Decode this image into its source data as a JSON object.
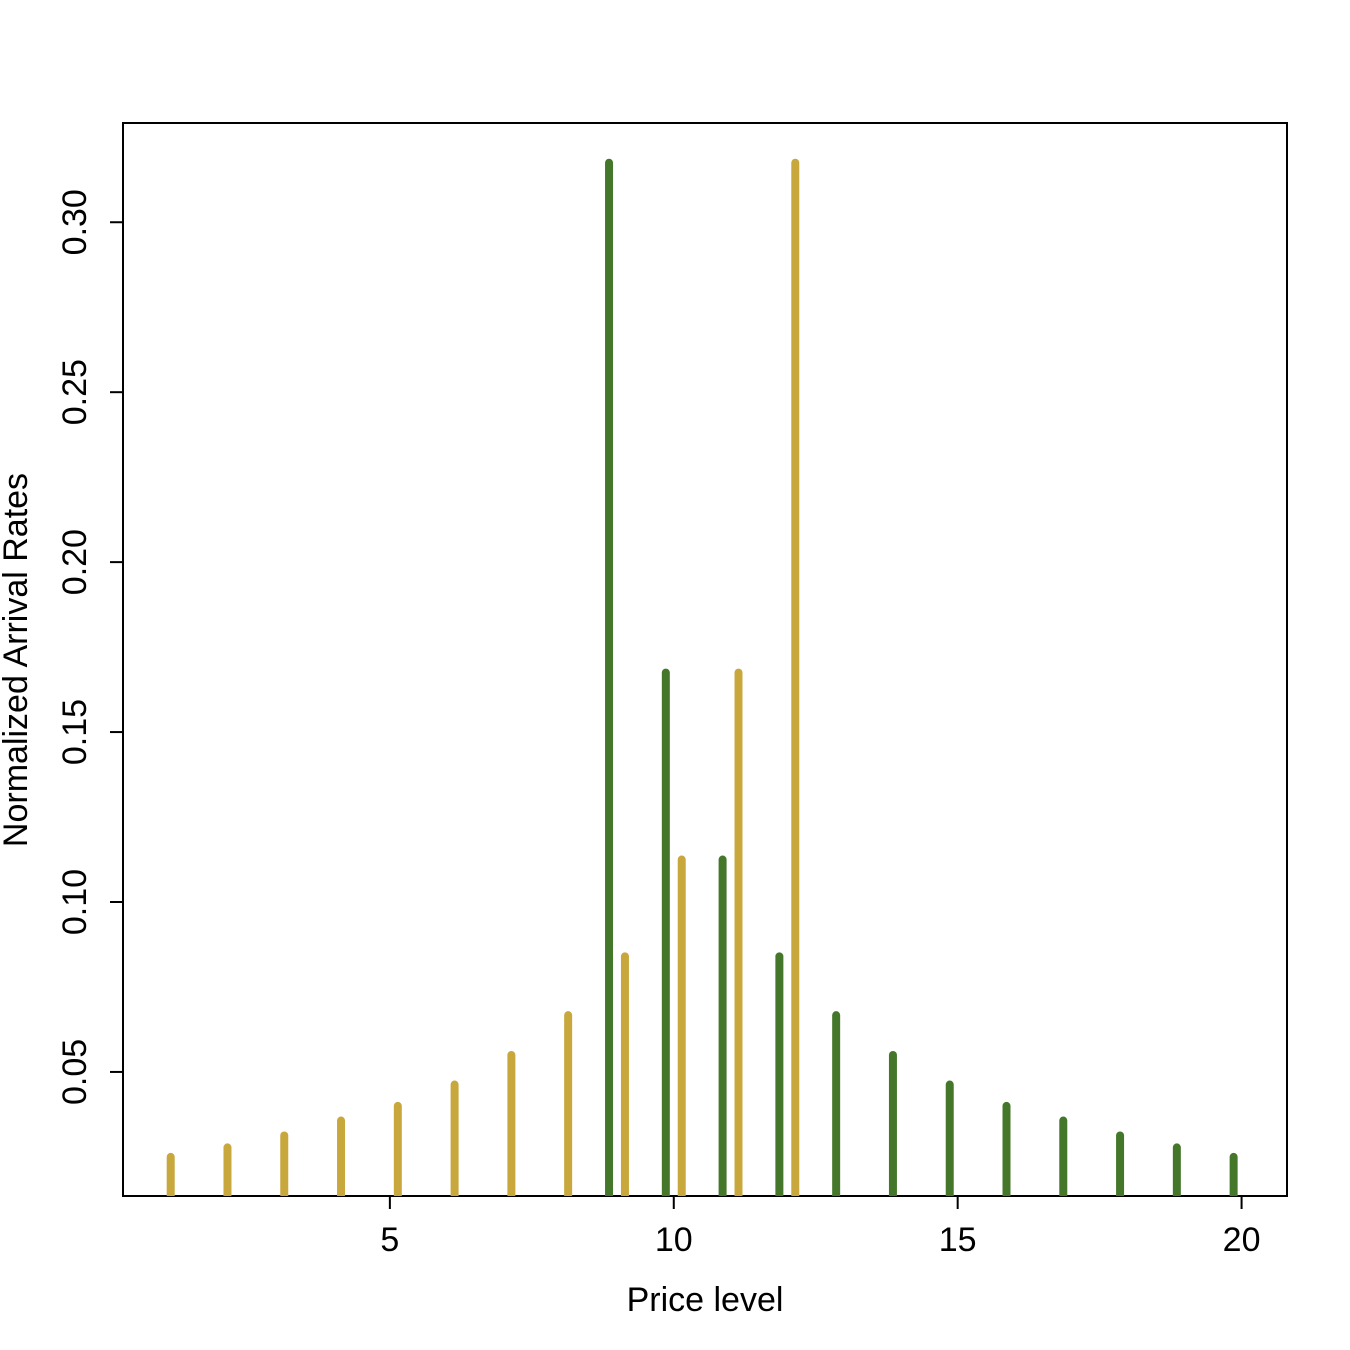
{
  "chart_data": {
    "type": "bar",
    "title": "",
    "xlabel": "Price level",
    "ylabel": "Normalized Arrival Rates",
    "xlim": [
      0.3,
      20.8
    ],
    "ylim": [
      0.0135,
      0.3292
    ],
    "x_ticks": [
      5,
      10,
      15,
      20
    ],
    "y_ticks": [
      0.05,
      0.1,
      0.15,
      0.2,
      0.25,
      0.3
    ],
    "x_tick_labels": [
      "5",
      "10",
      "15",
      "20"
    ],
    "y_tick_labels": [
      "0.05",
      "0.10",
      "0.15",
      "0.20",
      "0.25",
      "0.30"
    ],
    "grid": false,
    "legend": "none",
    "series": [
      {
        "color": "#C8A83C",
        "x": [
          1,
          2,
          3,
          4,
          5,
          6,
          7,
          8,
          9,
          10,
          11,
          12
        ],
        "values": [
          0.025,
          0.0278,
          0.0313,
          0.0357,
          0.04,
          0.0463,
          0.055,
          0.0667,
          0.084,
          0.1125,
          0.1675,
          0.3175
        ]
      },
      {
        "color": "#45772A",
        "x": [
          9,
          10,
          11,
          12,
          13,
          14,
          15,
          16,
          17,
          18,
          19,
          20
        ],
        "values": [
          0.3175,
          0.1675,
          0.1125,
          0.084,
          0.0667,
          0.055,
          0.0463,
          0.04,
          0.0357,
          0.0313,
          0.0278,
          0.025
        ]
      }
    ]
  }
}
